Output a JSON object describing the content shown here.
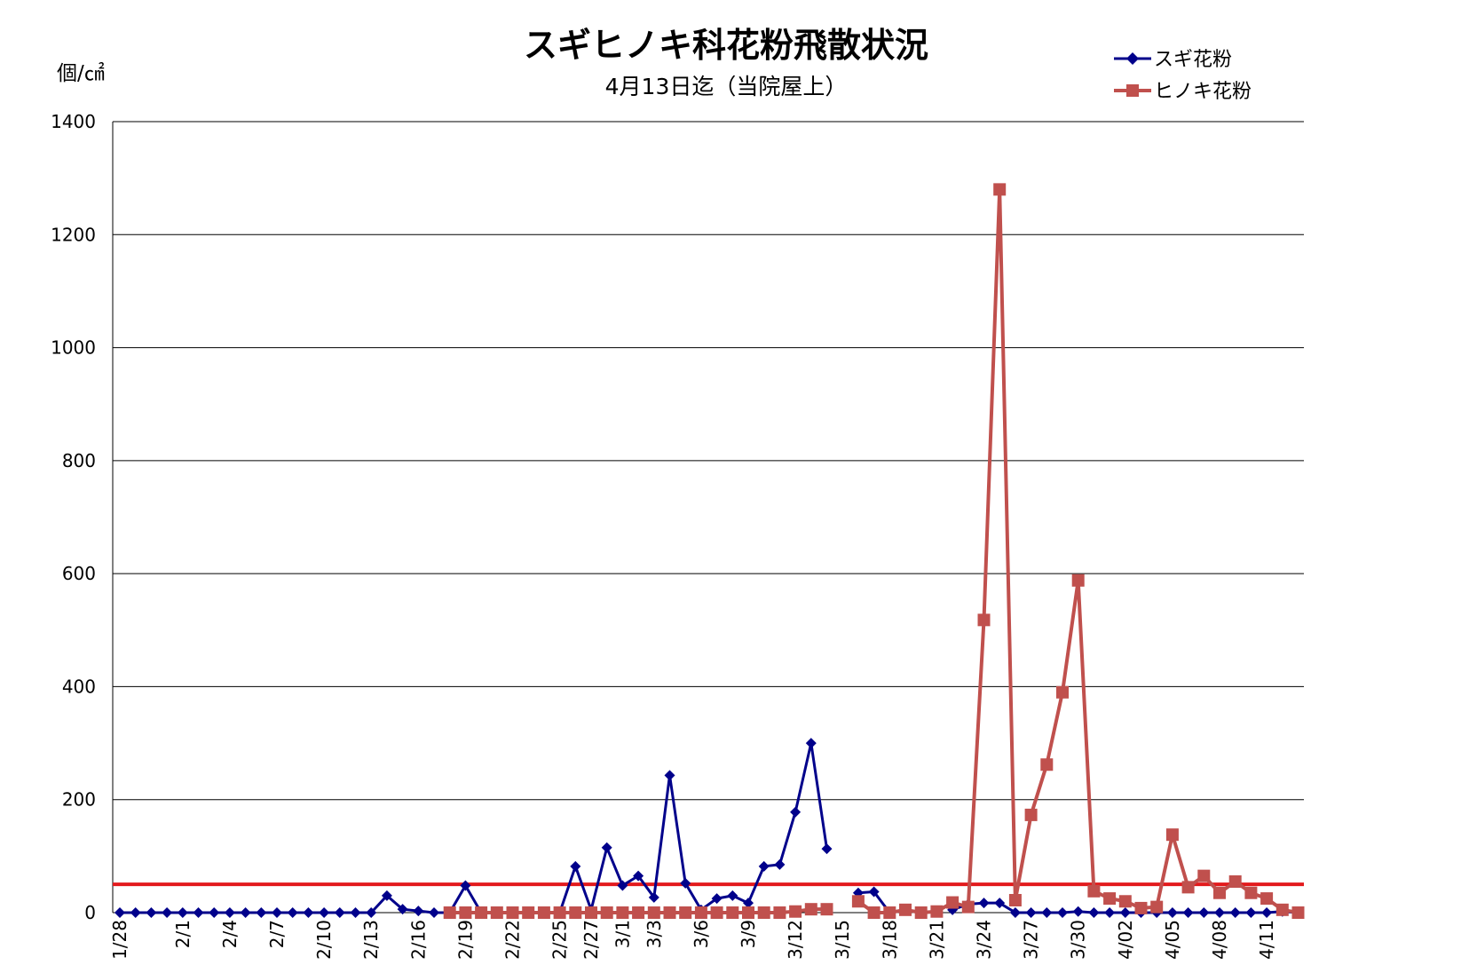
{
  "chart_data": {
    "type": "line",
    "title": "スギヒノキ科花粉飛散状況",
    "subtitle": "4月13日迄（当院屋上）",
    "ylabel": "個/㎠",
    "ylim": [
      0,
      1400
    ],
    "yticks": [
      "0",
      "200",
      "400",
      "600",
      "800",
      "1000",
      "1200",
      "1400"
    ],
    "grid": true,
    "legend_position": "top-right",
    "threshold": {
      "value": 50,
      "color": "#e31a1c"
    },
    "x": [
      "1/28",
      "1/29",
      "1/30",
      "1/31",
      "2/1",
      "2/2",
      "2/3",
      "2/4",
      "2/5",
      "2/6",
      "2/7",
      "2/8",
      "2/9",
      "2/10",
      "2/11",
      "2/12",
      "2/13",
      "2/14",
      "2/15",
      "2/16",
      "2/17",
      "2/18",
      "2/19",
      "2/20",
      "2/21",
      "2/22",
      "2/23",
      "2/24",
      "2/25",
      "2/26",
      "2/27",
      "2/28",
      "3/1",
      "3/2",
      "3/3",
      "3/4",
      "3/5",
      "3/6",
      "3/7",
      "3/8",
      "3/9",
      "3/10",
      "3/11",
      "3/12",
      "3/13",
      "3/14",
      "3/15",
      "3/16",
      "3/17",
      "3/18",
      "3/19",
      "3/20",
      "3/21",
      "3/22",
      "3/23",
      "3/24",
      "3/25",
      "3/26",
      "3/27",
      "3/28",
      "3/29",
      "3/30",
      "3/31",
      "4/01",
      "4/02",
      "4/03",
      "4/04",
      "4/05",
      "4/06",
      "4/07",
      "4/08",
      "4/09",
      "4/10",
      "4/11",
      "4/12",
      "4/13"
    ],
    "x_tick_labels": [
      {
        "index": 0,
        "label": "1/28"
      },
      {
        "index": 4,
        "label": "2/1"
      },
      {
        "index": 7,
        "label": "2/4"
      },
      {
        "index": 10,
        "label": "2/7"
      },
      {
        "index": 13,
        "label": "2/10"
      },
      {
        "index": 16,
        "label": "2/13"
      },
      {
        "index": 19,
        "label": "2/16"
      },
      {
        "index": 22,
        "label": "2/19"
      },
      {
        "index": 25,
        "label": "2/22"
      },
      {
        "index": 28,
        "label": "2/25"
      },
      {
        "index": 30,
        "label": "2/27"
      },
      {
        "index": 32,
        "label": "3/1"
      },
      {
        "index": 34,
        "label": "3/3"
      },
      {
        "index": 37,
        "label": "3/6"
      },
      {
        "index": 40,
        "label": "3/9"
      },
      {
        "index": 43,
        "label": "3/12"
      },
      {
        "index": 46,
        "label": "3/15"
      },
      {
        "index": 49,
        "label": "3/18"
      },
      {
        "index": 52,
        "label": "3/21"
      },
      {
        "index": 55,
        "label": "3/24"
      },
      {
        "index": 58,
        "label": "3/27"
      },
      {
        "index": 61,
        "label": "3/30"
      },
      {
        "index": 64,
        "label": "4/02"
      },
      {
        "index": 67,
        "label": "4/05"
      },
      {
        "index": 70,
        "label": "4/08"
      },
      {
        "index": 73,
        "label": "4/11"
      }
    ],
    "series": [
      {
        "name": "スギ花粉",
        "color": "#00008b",
        "marker": "diamond",
        "values": [
          0,
          0,
          0,
          0,
          0,
          0,
          0,
          0,
          0,
          0,
          0,
          0,
          0,
          0,
          0,
          0,
          0,
          30,
          6,
          3,
          0,
          0,
          48,
          0,
          0,
          0,
          0,
          0,
          0,
          82,
          5,
          115,
          48,
          65,
          27,
          243,
          52,
          5,
          25,
          30,
          17,
          82,
          85,
          178,
          300,
          113,
          null,
          35,
          37,
          0,
          null,
          null,
          null,
          5,
          15,
          17,
          17,
          0,
          0,
          0,
          0,
          2,
          0,
          0,
          0,
          0,
          0,
          0,
          0,
          0,
          0,
          0,
          0,
          0,
          2,
          0
        ]
      },
      {
        "name": "ヒノキ花粉",
        "color": "#c0504d",
        "marker": "square",
        "values": [
          null,
          null,
          null,
          null,
          null,
          null,
          null,
          null,
          null,
          null,
          null,
          null,
          null,
          null,
          null,
          null,
          null,
          null,
          null,
          null,
          null,
          0,
          0,
          0,
          0,
          0,
          0,
          0,
          0,
          0,
          0,
          0,
          0,
          0,
          0,
          0,
          0,
          0,
          0,
          0,
          0,
          0,
          0,
          2,
          6,
          6,
          null,
          20,
          0,
          0,
          5,
          0,
          2,
          18,
          10,
          518,
          1280,
          22,
          173,
          262,
          390,
          588,
          38,
          25,
          20,
          8,
          10,
          138,
          45,
          65,
          35,
          55,
          35,
          25,
          5,
          0
        ]
      }
    ]
  }
}
